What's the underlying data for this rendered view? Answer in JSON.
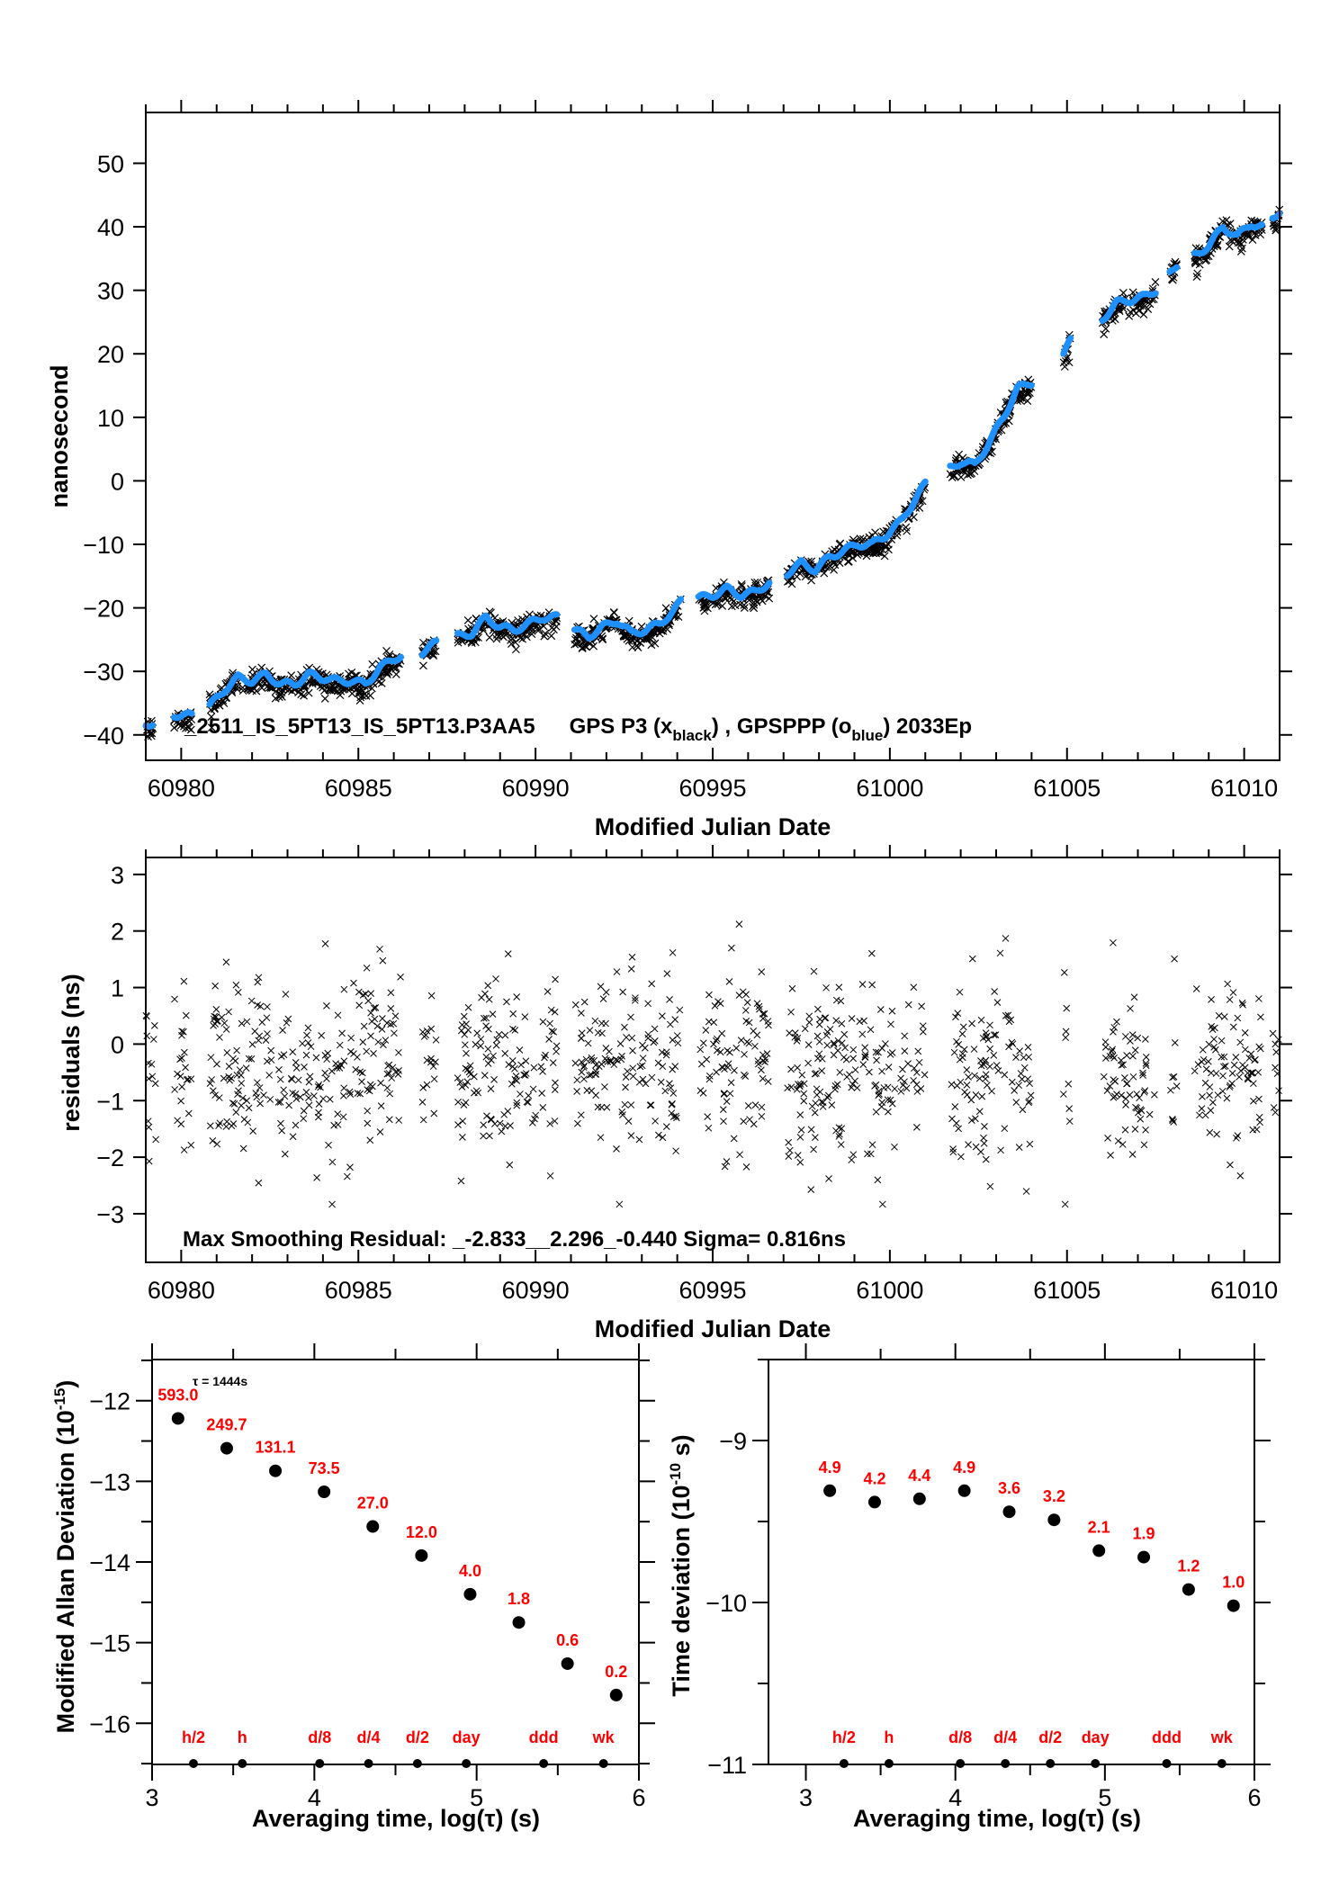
{
  "chart_data": [
    {
      "id": "clock-offset",
      "type": "scatter",
      "title": "",
      "annotation": "_2511_IS_5PT13_IS_5PT13.P3AA5    GPS P3 (x",
      "annotation_parts": {
        "station": "_2511_IS_5PT13_IS_5PT13.P3AA5",
        "series1": "GPS P3 (x",
        "series1_sub": "black",
        "sep": ") ,  GPSPPP (o",
        "series2_sub": "blue",
        "tail": ")  2033Ep"
      },
      "xlabel": "Modified Julian Date",
      "ylabel": "nanosecond",
      "xlim": [
        60979,
        61011
      ],
      "ylim": [
        -44,
        58
      ],
      "xticks": [
        60980,
        60985,
        60990,
        60995,
        61000,
        61005,
        61010
      ],
      "yticks": [
        -40,
        -30,
        -20,
        -10,
        0,
        10,
        20,
        30,
        40,
        50
      ],
      "grid": false,
      "series": [
        {
          "name": "GPS P3",
          "marker": "x",
          "color": "#000000"
        },
        {
          "name": "GPSPPP",
          "marker": "o",
          "color": "#1e90ff"
        }
      ],
      "segments": [
        {
          "x": [
            60979.0,
            60979.2
          ],
          "y": [
            -38.6,
            -38.0
          ]
        },
        {
          "x": [
            60979.8,
            60980.3
          ],
          "y": [
            -36.8,
            -37.0
          ]
        },
        {
          "x": [
            60980.8,
            60981.2,
            60981.6,
            60982.0,
            60982.4,
            60982.8,
            60983.2,
            60983.6,
            60984.0,
            60984.4,
            60984.8,
            60985.2,
            60985.6,
            60986.0,
            60986.2
          ],
          "y": [
            -35.5,
            -33.0,
            -31.0,
            -31.5,
            -30.5,
            -32.0,
            -32.0,
            -30.5,
            -31.0,
            -31.5,
            -31.5,
            -32.0,
            -29.5,
            -28.0,
            -27.5
          ]
        },
        {
          "x": [
            60986.8,
            60987.2
          ],
          "y": [
            -27.0,
            -25.5
          ]
        },
        {
          "x": [
            60987.8,
            60988.2,
            60988.6,
            60989.0,
            60989.4,
            60989.8,
            60990.2,
            60990.6
          ],
          "y": [
            -24.5,
            -24.0,
            -21.5,
            -23.0,
            -23.5,
            -22.5,
            -21.5,
            -21.5
          ]
        },
        {
          "x": [
            60991.1,
            60991.5,
            60991.9,
            60992.3,
            60992.7,
            60993.1,
            60993.5,
            60993.9,
            60994.1
          ],
          "y": [
            -23.5,
            -24.5,
            -23.0,
            -22.0,
            -24.0,
            -23.5,
            -22.5,
            -20.5,
            -19.0
          ]
        },
        {
          "x": [
            60994.6,
            60995.0,
            60995.4,
            60995.8,
            60996.2,
            60996.6
          ],
          "y": [
            -18.5,
            -18.0,
            -17.0,
            -18.0,
            -17.5,
            -16.0
          ]
        },
        {
          "x": [
            60997.1,
            60997.5,
            60997.9,
            60998.3,
            60998.7,
            60999.1,
            60999.5,
            60999.9,
            61000.3,
            61000.7,
            61001.0
          ],
          "y": [
            -14.5,
            -13.0,
            -14.0,
            -12.0,
            -11.0,
            -10.0,
            -10.0,
            -8.5,
            -6.5,
            -3.0,
            -0.5
          ]
        },
        {
          "x": [
            61001.7,
            61002.0,
            61002.4,
            61002.8,
            61003.2,
            61003.6,
            61004.0
          ],
          "y": [
            2.0,
            3.0,
            2.5,
            6.0,
            10.0,
            14.5,
            15.5
          ]
        },
        {
          "x": [
            61004.9,
            61005.1
          ],
          "y": [
            20.0,
            22.0
          ]
        },
        {
          "x": [
            61006.0,
            61006.4,
            61006.8,
            61007.2,
            61007.5
          ],
          "y": [
            25.5,
            28.0,
            28.5,
            29.0,
            30.0
          ]
        },
        {
          "x": [
            61007.9,
            61008.1
          ],
          "y": [
            32.5,
            34.0
          ]
        },
        {
          "x": [
            61008.6,
            61009.0,
            61009.4,
            61009.8,
            61010.2,
            61010.5
          ],
          "y": [
            35.5,
            37.0,
            40.0,
            38.5,
            40.5,
            40.0
          ]
        },
        {
          "x": [
            61010.8,
            61011.0
          ],
          "y": [
            41.5,
            42.5
          ]
        }
      ]
    },
    {
      "id": "residuals",
      "type": "scatter",
      "annotation": "Max Smoothing Residual: _-2.833__2.296_-0.440  Sigma= 0.816ns",
      "xlabel": "Modified Julian Date",
      "ylabel": "residuals (ns)",
      "xlim": [
        60979,
        61011
      ],
      "ylim": [
        -3.86,
        3.3
      ],
      "xticks": [
        60980,
        60985,
        60990,
        60995,
        61000,
        61005,
        61010
      ],
      "yticks": [
        -3,
        -2,
        -1,
        0,
        1,
        2,
        3
      ],
      "grid": false,
      "stats": {
        "min": -2.833,
        "max": 2.296,
        "mean": -0.44,
        "sigma_ns": 0.816
      },
      "series": [
        {
          "name": "residuals",
          "marker": "x",
          "color": "#000000"
        }
      ],
      "segments_x": [
        [
          60979.0,
          60979.3
        ],
        [
          60979.8,
          60980.3
        ],
        [
          60980.8,
          60986.2
        ],
        [
          60986.8,
          60987.2
        ],
        [
          60987.8,
          60990.6
        ],
        [
          60991.1,
          60994.1
        ],
        [
          60994.6,
          60996.6
        ],
        [
          60997.1,
          61001.0
        ],
        [
          61001.7,
          61004.0
        ],
        [
          61004.9,
          61005.1
        ],
        [
          61006.0,
          61007.5
        ],
        [
          61007.9,
          61008.1
        ],
        [
          61008.6,
          61010.5
        ],
        [
          61010.8,
          61011.0
        ]
      ]
    },
    {
      "id": "mod-allan-deviation",
      "type": "scatter",
      "xlabel": "Averaging time, log(τ) (s)",
      "ylabel": "Modified Allan Deviation (10",
      "ylabel_sup": "-15",
      "ylabel_tail": ")",
      "tau_note": "τ = 1444s",
      "xlim": [
        3,
        6
      ],
      "ylim": [
        -16.51,
        -11.49
      ],
      "xticks": [
        3,
        4,
        5,
        6
      ],
      "yticks": [
        -16,
        -15,
        -14,
        -13,
        -12
      ],
      "grid": false,
      "x": [
        3.16,
        3.46,
        3.76,
        4.06,
        4.36,
        4.66,
        4.96,
        5.26,
        5.56,
        5.86
      ],
      "y": [
        -12.22,
        -12.59,
        -12.87,
        -13.13,
        -13.56,
        -13.92,
        -14.4,
        -14.75,
        -15.26,
        -15.65
      ],
      "point_labels": [
        "593.0",
        "249.7",
        "131.1",
        "73.5",
        "27.0",
        "12.0",
        "4.0",
        "1.8",
        "0.6",
        "0.2"
      ],
      "time_markers": {
        "labels": [
          "h/2",
          "h",
          "d/8",
          "d/4",
          "d/2",
          "day",
          "ddd",
          "wk"
        ],
        "x": [
          3.255,
          3.556,
          4.033,
          4.334,
          4.635,
          4.936,
          5.413,
          5.782
        ]
      }
    },
    {
      "id": "time-deviation",
      "type": "scatter",
      "xlabel": "Averaging time, log(τ) (s)",
      "ylabel": "Time deviation (10",
      "ylabel_sup": "-10",
      "ylabel_tail": " s)",
      "xlim": [
        2.75,
        6
      ],
      "ylim": [
        -11,
        -8.5
      ],
      "xticks": [
        3,
        4,
        5,
        6
      ],
      "yticks": [
        -11,
        -10,
        -9
      ],
      "grid": false,
      "x": [
        3.16,
        3.46,
        3.76,
        4.06,
        4.36,
        4.66,
        4.96,
        5.26,
        5.56,
        5.86
      ],
      "y": [
        -9.31,
        -9.38,
        -9.36,
        -9.31,
        -9.44,
        -9.49,
        -9.68,
        -9.72,
        -9.92,
        -10.02
      ],
      "point_labels": [
        "4.9",
        "4.2",
        "4.4",
        "4.9",
        "3.6",
        "3.2",
        "2.1",
        "1.9",
        "1.2",
        "1.0"
      ],
      "time_markers": {
        "labels": [
          "h/2",
          "h",
          "d/8",
          "d/4",
          "d/2",
          "day",
          "ddd",
          "wk"
        ],
        "x": [
          3.255,
          3.556,
          4.033,
          4.334,
          4.635,
          4.936,
          5.413,
          5.782
        ]
      }
    }
  ]
}
